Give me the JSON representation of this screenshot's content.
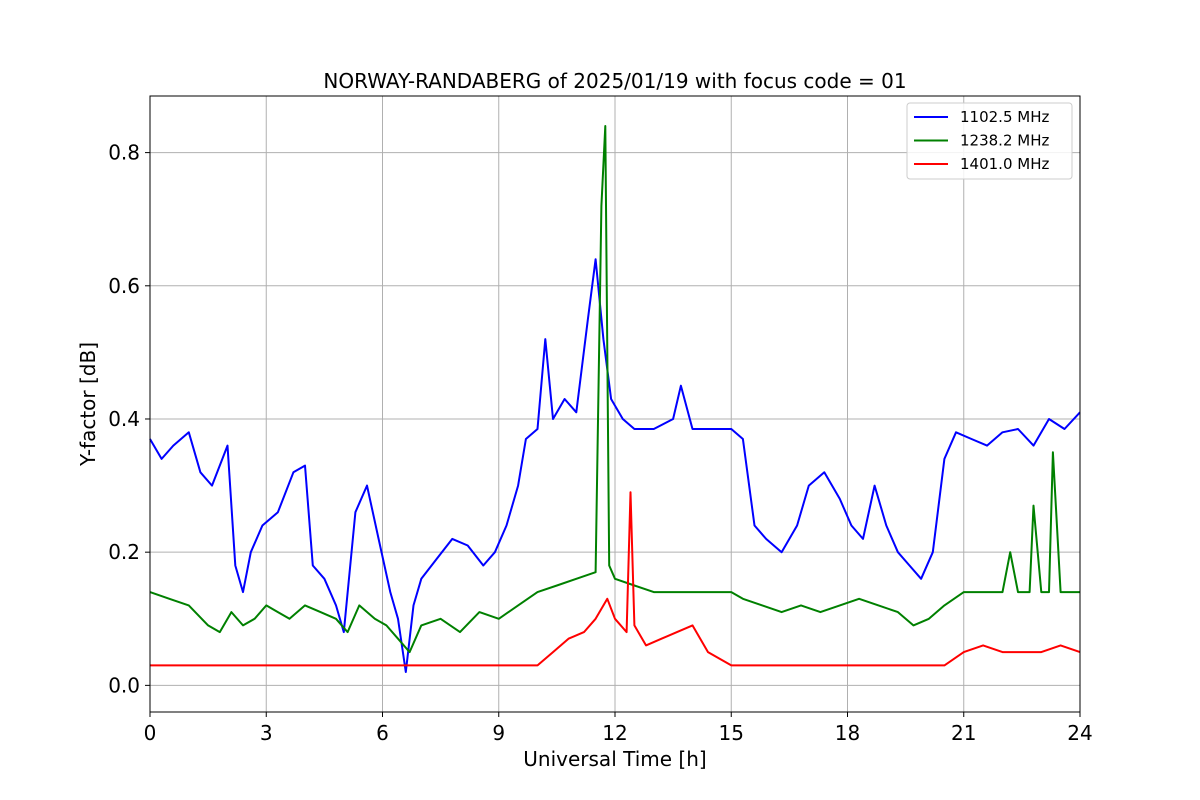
{
  "chart_data": {
    "type": "line",
    "title": "NORWAY-RANDABERG of 2025/01/19 with focus code = 01",
    "xlabel": "Universal Time [h]",
    "ylabel": "Y-factor [dB]",
    "xlim": [
      0,
      24
    ],
    "ylim": [
      -0.04,
      0.885
    ],
    "xticks": [
      0,
      3,
      6,
      9,
      12,
      15,
      18,
      21,
      24
    ],
    "xtick_labels": [
      "0",
      "3",
      "6",
      "9",
      "12",
      "15",
      "18",
      "21",
      "24"
    ],
    "yticks": [
      0.0,
      0.2,
      0.4,
      0.6,
      0.8
    ],
    "ytick_labels": [
      "0.0",
      "0.2",
      "0.4",
      "0.6",
      "0.8"
    ],
    "grid": true,
    "legend_position": "top-right",
    "series": [
      {
        "name": "1102.5 MHz",
        "color": "#0000ff",
        "x": [
          0,
          0.3,
          0.6,
          1.0,
          1.3,
          1.6,
          2.0,
          2.2,
          2.4,
          2.6,
          2.9,
          3.3,
          3.7,
          4.0,
          4.2,
          4.5,
          4.8,
          5.0,
          5.3,
          5.6,
          5.9,
          6.2,
          6.4,
          6.6,
          6.8,
          7.0,
          7.4,
          7.8,
          8.2,
          8.6,
          8.9,
          9.2,
          9.5,
          9.7,
          10.0,
          10.2,
          10.4,
          10.7,
          11.0,
          11.3,
          11.5,
          11.7,
          11.9,
          12.2,
          12.5,
          13.0,
          13.5,
          13.7,
          14.0,
          14.5,
          15.0,
          15.3,
          15.6,
          15.9,
          16.3,
          16.7,
          17.0,
          17.4,
          17.8,
          18.1,
          18.4,
          18.7,
          19.0,
          19.3,
          19.6,
          19.9,
          20.2,
          20.5,
          20.8,
          21.2,
          21.6,
          22.0,
          22.4,
          22.8,
          23.2,
          23.6,
          24.0
        ],
        "values": [
          0.37,
          0.34,
          0.36,
          0.38,
          0.32,
          0.3,
          0.36,
          0.18,
          0.14,
          0.2,
          0.24,
          0.26,
          0.32,
          0.33,
          0.18,
          0.16,
          0.12,
          0.08,
          0.26,
          0.3,
          0.22,
          0.14,
          0.1,
          0.02,
          0.12,
          0.16,
          0.19,
          0.22,
          0.21,
          0.18,
          0.2,
          0.24,
          0.3,
          0.37,
          0.385,
          0.52,
          0.4,
          0.43,
          0.41,
          0.55,
          0.64,
          0.52,
          0.43,
          0.4,
          0.385,
          0.385,
          0.4,
          0.45,
          0.385,
          0.385,
          0.385,
          0.37,
          0.24,
          0.22,
          0.2,
          0.24,
          0.3,
          0.32,
          0.28,
          0.24,
          0.22,
          0.3,
          0.24,
          0.2,
          0.18,
          0.16,
          0.2,
          0.34,
          0.38,
          0.37,
          0.36,
          0.38,
          0.385,
          0.36,
          0.4,
          0.385,
          0.41
        ]
      },
      {
        "name": "1238.2 MHz",
        "color": "#008000",
        "x": [
          0,
          0.5,
          1.0,
          1.5,
          1.8,
          2.1,
          2.4,
          2.7,
          3.0,
          3.3,
          3.6,
          4.0,
          4.4,
          4.8,
          5.1,
          5.4,
          5.8,
          6.1,
          6.4,
          6.7,
          7.0,
          7.5,
          8.0,
          8.5,
          9.0,
          9.5,
          10.0,
          10.5,
          11.0,
          11.5,
          11.65,
          11.75,
          11.85,
          12.0,
          12.5,
          13.0,
          14.0,
          15.0,
          15.3,
          15.8,
          16.3,
          16.8,
          17.3,
          17.8,
          18.3,
          18.8,
          19.3,
          19.7,
          20.1,
          20.5,
          21.0,
          22.0,
          22.2,
          22.4,
          22.7,
          22.8,
          23.0,
          23.2,
          23.3,
          23.5,
          24.0
        ],
        "values": [
          0.14,
          0.13,
          0.12,
          0.09,
          0.08,
          0.11,
          0.09,
          0.1,
          0.12,
          0.11,
          0.1,
          0.12,
          0.11,
          0.1,
          0.08,
          0.12,
          0.1,
          0.09,
          0.07,
          0.05,
          0.09,
          0.1,
          0.08,
          0.11,
          0.1,
          0.12,
          0.14,
          0.15,
          0.16,
          0.17,
          0.72,
          0.84,
          0.18,
          0.16,
          0.15,
          0.14,
          0.14,
          0.14,
          0.13,
          0.12,
          0.11,
          0.12,
          0.11,
          0.12,
          0.13,
          0.12,
          0.11,
          0.09,
          0.1,
          0.12,
          0.14,
          0.14,
          0.2,
          0.14,
          0.14,
          0.27,
          0.14,
          0.14,
          0.35,
          0.14,
          0.14
        ]
      },
      {
        "name": "1401.0 MHz",
        "color": "#ff0000",
        "x": [
          0,
          1.0,
          2.0,
          3.0,
          4.0,
          5.0,
          6.0,
          7.0,
          8.0,
          9.0,
          10.0,
          10.4,
          10.8,
          11.2,
          11.5,
          11.8,
          12.0,
          12.3,
          12.4,
          12.5,
          12.8,
          13.2,
          13.6,
          14.0,
          14.4,
          15.0,
          16.0,
          17.0,
          18.0,
          19.0,
          20.0,
          20.5,
          21.0,
          21.5,
          22.0,
          22.5,
          23.0,
          23.5,
          24.0
        ],
        "values": [
          0.03,
          0.03,
          0.03,
          0.03,
          0.03,
          0.03,
          0.03,
          0.03,
          0.03,
          0.03,
          0.03,
          0.05,
          0.07,
          0.08,
          0.1,
          0.13,
          0.1,
          0.08,
          0.29,
          0.09,
          0.06,
          0.07,
          0.08,
          0.09,
          0.05,
          0.03,
          0.03,
          0.03,
          0.03,
          0.03,
          0.03,
          0.03,
          0.05,
          0.06,
          0.05,
          0.05,
          0.05,
          0.06,
          0.05
        ]
      }
    ]
  }
}
